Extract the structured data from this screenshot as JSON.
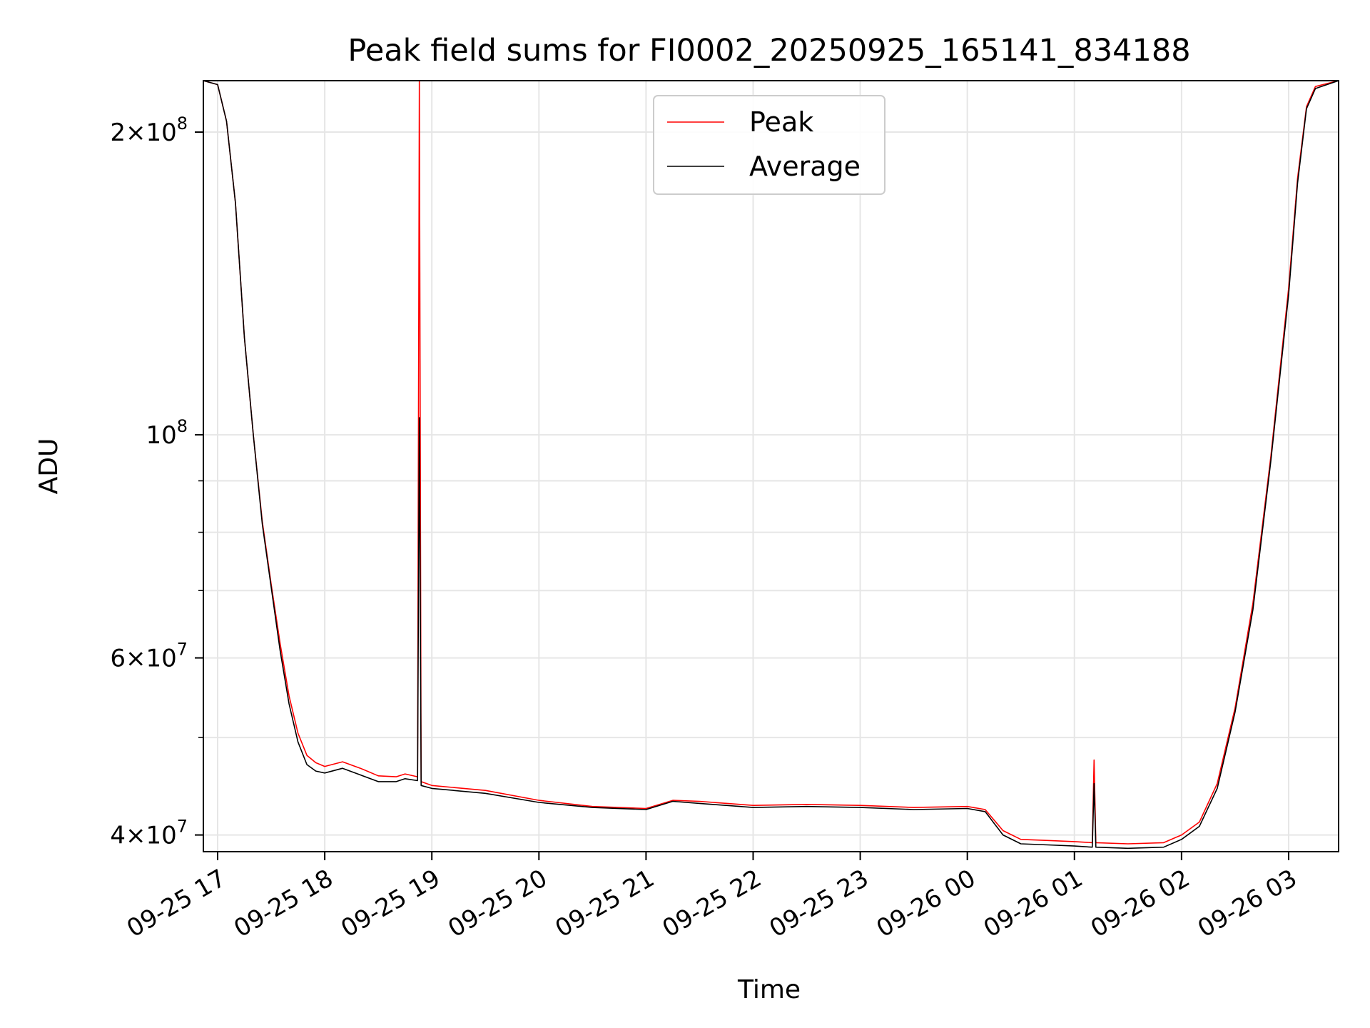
{
  "chart_data": {
    "type": "line",
    "title": "Peak field sums for FI0002_20250925_165141_834188",
    "xlabel": "Time",
    "ylabel": "ADU",
    "x_range": [
      "2025-09-25 16:52",
      "2025-09-26 03:28"
    ],
    "y_range": [
      38500000,
      225000000
    ],
    "y_scale": "log",
    "grid": true,
    "legend_position": "upper center",
    "x_ticks": [
      {
        "value": "2025-09-25 17:00",
        "label": "09-25 17"
      },
      {
        "value": "2025-09-25 18:00",
        "label": "09-25 18"
      },
      {
        "value": "2025-09-25 19:00",
        "label": "09-25 19"
      },
      {
        "value": "2025-09-25 20:00",
        "label": "09-25 20"
      },
      {
        "value": "2025-09-25 21:00",
        "label": "09-25 21"
      },
      {
        "value": "2025-09-25 22:00",
        "label": "09-25 22"
      },
      {
        "value": "2025-09-25 23:00",
        "label": "09-25 23"
      },
      {
        "value": "2025-09-26 00:00",
        "label": "09-26 00"
      },
      {
        "value": "2025-09-26 01:00",
        "label": "09-26 01"
      },
      {
        "value": "2025-09-26 02:00",
        "label": "09-26 02"
      },
      {
        "value": "2025-09-26 03:00",
        "label": "09-26 03"
      }
    ],
    "y_major_ticks": [
      {
        "value": 40000000,
        "mantissa": "4",
        "exponent": "7"
      },
      {
        "value": 60000000,
        "mantissa": "6",
        "exponent": "7"
      },
      {
        "value": 100000000,
        "mantissa": "",
        "exponent": "8"
      },
      {
        "value": 200000000,
        "mantissa": "2",
        "exponent": "8"
      }
    ],
    "y_minor_ticks": [
      50000000,
      70000000,
      80000000,
      90000000
    ],
    "series": [
      {
        "name": "Peak",
        "color": "#ff0000",
        "points": [
          [
            "2025-09-25 16:52",
            225000000
          ],
          [
            "2025-09-25 17:00",
            223000000
          ],
          [
            "2025-09-25 17:05",
            205000000
          ],
          [
            "2025-09-25 17:10",
            170000000
          ],
          [
            "2025-09-25 17:15",
            125000000
          ],
          [
            "2025-09-25 17:20",
            100000000
          ],
          [
            "2025-09-25 17:25",
            82000000
          ],
          [
            "2025-09-25 17:30",
            71000000
          ],
          [
            "2025-09-25 17:35",
            62000000
          ],
          [
            "2025-09-25 17:40",
            55000000
          ],
          [
            "2025-09-25 17:45",
            50500000
          ],
          [
            "2025-09-25 17:50",
            48000000
          ],
          [
            "2025-09-25 17:55",
            47200000
          ],
          [
            "2025-09-25 18:00",
            46800000
          ],
          [
            "2025-09-25 18:10",
            47300000
          ],
          [
            "2025-09-25 18:20",
            46600000
          ],
          [
            "2025-09-25 18:30",
            45800000
          ],
          [
            "2025-09-25 18:40",
            45700000
          ],
          [
            "2025-09-25 18:45",
            46000000
          ],
          [
            "2025-09-25 18:52",
            45700000
          ],
          [
            "2025-09-25 18:53",
            225000000
          ],
          [
            "2025-09-25 18:54",
            45200000
          ],
          [
            "2025-09-25 19:00",
            44800000
          ],
          [
            "2025-09-25 19:30",
            44300000
          ],
          [
            "2025-09-25 20:00",
            43300000
          ],
          [
            "2025-09-25 20:30",
            42700000
          ],
          [
            "2025-09-25 21:00",
            42500000
          ],
          [
            "2025-09-25 21:15",
            43300000
          ],
          [
            "2025-09-25 21:30",
            43200000
          ],
          [
            "2025-09-25 22:00",
            42800000
          ],
          [
            "2025-09-25 22:30",
            42900000
          ],
          [
            "2025-09-25 23:00",
            42800000
          ],
          [
            "2025-09-25 23:30",
            42600000
          ],
          [
            "2025-09-26 00:00",
            42700000
          ],
          [
            "2025-09-26 00:10",
            42400000
          ],
          [
            "2025-09-26 00:20",
            40400000
          ],
          [
            "2025-09-26 00:30",
            39600000
          ],
          [
            "2025-09-26 00:45",
            39500000
          ],
          [
            "2025-09-26 01:00",
            39400000
          ],
          [
            "2025-09-26 01:10",
            39300000
          ],
          [
            "2025-09-26 01:11",
            47500000
          ],
          [
            "2025-09-26 01:12",
            39300000
          ],
          [
            "2025-09-26 01:30",
            39200000
          ],
          [
            "2025-09-26 01:50",
            39300000
          ],
          [
            "2025-09-26 02:00",
            40000000
          ],
          [
            "2025-09-26 02:10",
            41200000
          ],
          [
            "2025-09-26 02:20",
            45000000
          ],
          [
            "2025-09-26 02:30",
            53500000
          ],
          [
            "2025-09-26 02:40",
            68000000
          ],
          [
            "2025-09-26 02:50",
            95000000
          ],
          [
            "2025-09-26 03:00",
            140000000
          ],
          [
            "2025-09-26 03:05",
            180000000
          ],
          [
            "2025-09-26 03:10",
            212000000
          ],
          [
            "2025-09-26 03:15",
            222000000
          ],
          [
            "2025-09-26 03:28",
            225000000
          ]
        ]
      },
      {
        "name": "Average",
        "color": "#000000",
        "points": [
          [
            "2025-09-25 16:52",
            225000000
          ],
          [
            "2025-09-25 17:00",
            223000000
          ],
          [
            "2025-09-25 17:05",
            205000000
          ],
          [
            "2025-09-25 17:10",
            170000000
          ],
          [
            "2025-09-25 17:15",
            125000000
          ],
          [
            "2025-09-25 17:20",
            100000000
          ],
          [
            "2025-09-25 17:25",
            81500000
          ],
          [
            "2025-09-25 17:30",
            70500000
          ],
          [
            "2025-09-25 17:35",
            61000000
          ],
          [
            "2025-09-25 17:40",
            54000000
          ],
          [
            "2025-09-25 17:45",
            49500000
          ],
          [
            "2025-09-25 17:50",
            47000000
          ],
          [
            "2025-09-25 17:55",
            46300000
          ],
          [
            "2025-09-25 18:00",
            46100000
          ],
          [
            "2025-09-25 18:10",
            46600000
          ],
          [
            "2025-09-25 18:20",
            45900000
          ],
          [
            "2025-09-25 18:30",
            45200000
          ],
          [
            "2025-09-25 18:40",
            45200000
          ],
          [
            "2025-09-25 18:45",
            45500000
          ],
          [
            "2025-09-25 18:52",
            45300000
          ],
          [
            "2025-09-25 18:53",
            104000000
          ],
          [
            "2025-09-25 18:54",
            44800000
          ],
          [
            "2025-09-25 19:00",
            44500000
          ],
          [
            "2025-09-25 19:30",
            44000000
          ],
          [
            "2025-09-25 20:00",
            43100000
          ],
          [
            "2025-09-25 20:30",
            42600000
          ],
          [
            "2025-09-25 21:00",
            42400000
          ],
          [
            "2025-09-25 21:15",
            43200000
          ],
          [
            "2025-09-25 21:30",
            43000000
          ],
          [
            "2025-09-25 22:00",
            42600000
          ],
          [
            "2025-09-25 22:30",
            42700000
          ],
          [
            "2025-09-25 23:00",
            42600000
          ],
          [
            "2025-09-25 23:30",
            42400000
          ],
          [
            "2025-09-26 00:00",
            42500000
          ],
          [
            "2025-09-26 00:10",
            42200000
          ],
          [
            "2025-09-26 00:20",
            40000000
          ],
          [
            "2025-09-26 00:30",
            39200000
          ],
          [
            "2025-09-26 00:45",
            39100000
          ],
          [
            "2025-09-26 01:00",
            39000000
          ],
          [
            "2025-09-26 01:10",
            38900000
          ],
          [
            "2025-09-26 01:11",
            45000000
          ],
          [
            "2025-09-26 01:12",
            38900000
          ],
          [
            "2025-09-26 01:30",
            38800000
          ],
          [
            "2025-09-26 01:50",
            38900000
          ],
          [
            "2025-09-26 02:00",
            39600000
          ],
          [
            "2025-09-26 02:10",
            40800000
          ],
          [
            "2025-09-26 02:20",
            44500000
          ],
          [
            "2025-09-26 02:30",
            53000000
          ],
          [
            "2025-09-26 02:40",
            67000000
          ],
          [
            "2025-09-26 02:50",
            94000000
          ],
          [
            "2025-09-26 03:00",
            138000000
          ],
          [
            "2025-09-26 03:05",
            178000000
          ],
          [
            "2025-09-26 03:10",
            211000000
          ],
          [
            "2025-09-26 03:15",
            221000000
          ],
          [
            "2025-09-26 03:28",
            225000000
          ]
        ]
      }
    ]
  }
}
